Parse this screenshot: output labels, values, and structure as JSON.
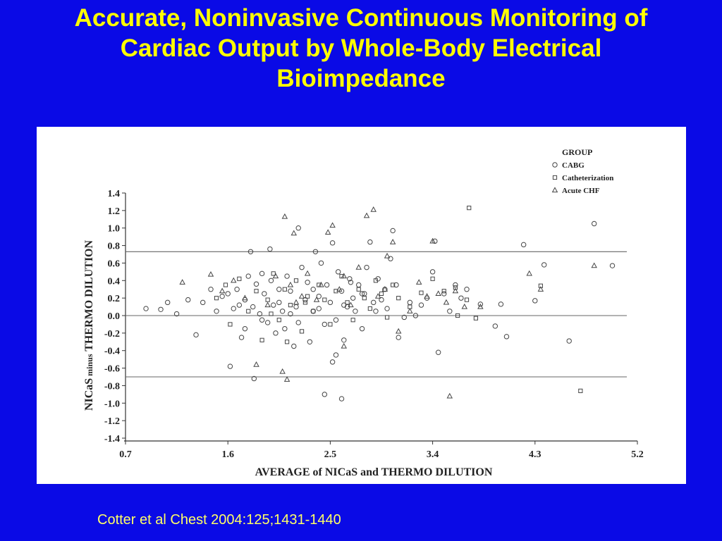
{
  "slide": {
    "title": "Accurate, Noninvasive Continuous Monitoring of Cardiac Output by Whole-Body Electrical Bioimpedance",
    "citation": "Cotter et al Chest 2004:125;1431-1440",
    "background_color": "#0a0ae6",
    "title_color": "#ffff00",
    "citation_color": "#ffff66"
  },
  "chart_data": {
    "type": "scatter",
    "xlabel": "AVERAGE of NICaS and THERMO DILUTION",
    "ylabel_parts": [
      "NICaS",
      "minus",
      "THERMO DILUTION"
    ],
    "xlim": [
      0.7,
      5.2
    ],
    "ylim": [
      -1.4,
      1.4
    ],
    "x_ticks": [
      "0.7",
      "1.6",
      "2.5",
      "3.4",
      "4.3",
      "5.2"
    ],
    "y_ticks": [
      "1.4",
      "1.2",
      "1.0",
      "0.8",
      "0.6",
      "0.4",
      "0.2",
      "0.0",
      "-0.2",
      "-0.4",
      "-0.6",
      "-0.8",
      "-1.0",
      "-1.2",
      "-1.4"
    ],
    "reference_lines": [
      0.73,
      0.0,
      -0.7
    ],
    "legend": {
      "title": "GROUP",
      "position": "top-right",
      "entries": [
        {
          "name": "CABG",
          "marker": "circle"
        },
        {
          "name": "Catheterization",
          "marker": "square"
        },
        {
          "name": "Acute CHF",
          "marker": "triangle"
        }
      ]
    },
    "series": [
      {
        "name": "CABG",
        "marker": "circle",
        "points": [
          [
            0.88,
            0.08
          ],
          [
            1.01,
            0.07
          ],
          [
            1.07,
            0.15
          ],
          [
            1.15,
            0.02
          ],
          [
            1.25,
            0.18
          ],
          [
            1.32,
            -0.22
          ],
          [
            1.38,
            0.15
          ],
          [
            1.45,
            0.3
          ],
          [
            1.5,
            0.05
          ],
          [
            1.55,
            0.22
          ],
          [
            1.6,
            0.25
          ],
          [
            1.62,
            -0.58
          ],
          [
            1.65,
            0.08
          ],
          [
            1.68,
            0.3
          ],
          [
            1.7,
            0.12
          ],
          [
            1.72,
            -0.25
          ],
          [
            1.75,
            0.18
          ],
          [
            1.78,
            0.45
          ],
          [
            1.8,
            0.73
          ],
          [
            1.82,
            0.1
          ],
          [
            1.83,
            -0.72
          ],
          [
            1.85,
            0.36
          ],
          [
            1.88,
            0.02
          ],
          [
            1.9,
            0.48
          ],
          [
            1.92,
            0.25
          ],
          [
            1.95,
            -0.08
          ],
          [
            1.97,
            0.76
          ],
          [
            1.98,
            0.4
          ],
          [
            2.0,
            0.12
          ],
          [
            2.02,
            -0.2
          ],
          [
            2.05,
            0.3
          ],
          [
            2.08,
            0.05
          ],
          [
            2.1,
            -0.15
          ],
          [
            2.12,
            0.45
          ],
          [
            2.15,
            0.28
          ],
          [
            2.18,
            -0.35
          ],
          [
            2.2,
            0.1
          ],
          [
            2.22,
            1.0
          ],
          [
            2.25,
            0.55
          ],
          [
            2.28,
            0.18
          ],
          [
            2.3,
            0.38
          ],
          [
            2.32,
            -0.3
          ],
          [
            2.35,
            0.05
          ],
          [
            2.37,
            0.73
          ],
          [
            2.4,
            0.22
          ],
          [
            2.42,
            0.6
          ],
          [
            2.45,
            -0.1
          ],
          [
            2.47,
            0.35
          ],
          [
            2.5,
            0.15
          ],
          [
            2.52,
            0.83
          ],
          [
            2.55,
            -0.05
          ],
          [
            2.57,
            0.5
          ],
          [
            2.6,
            0.28
          ],
          [
            2.62,
            -0.28
          ],
          [
            2.65,
            0.1
          ],
          [
            2.67,
            0.42
          ],
          [
            2.7,
            0.2
          ],
          [
            2.72,
            0.05
          ],
          [
            2.75,
            0.35
          ],
          [
            2.78,
            -0.15
          ],
          [
            2.8,
            0.25
          ],
          [
            2.82,
            0.55
          ],
          [
            2.85,
            0.84
          ],
          [
            2.88,
            0.15
          ],
          [
            2.9,
            0.05
          ],
          [
            2.92,
            0.42
          ],
          [
            2.95,
            0.18
          ],
          [
            2.98,
            0.3
          ],
          [
            3.0,
            0.08
          ],
          [
            3.03,
            0.65
          ],
          [
            3.05,
            0.97
          ],
          [
            3.08,
            0.35
          ],
          [
            3.1,
            -0.25
          ],
          [
            3.15,
            -0.02
          ],
          [
            3.2,
            0.15
          ],
          [
            3.25,
            0.0
          ],
          [
            3.3,
            0.12
          ],
          [
            3.35,
            0.2
          ],
          [
            3.4,
            0.5
          ],
          [
            3.42,
            0.85
          ],
          [
            3.45,
            -0.42
          ],
          [
            3.5,
            0.25
          ],
          [
            3.55,
            0.05
          ],
          [
            3.6,
            0.35
          ],
          [
            3.65,
            0.2
          ],
          [
            3.7,
            0.3
          ],
          [
            3.82,
            0.13
          ],
          [
            3.95,
            -0.12
          ],
          [
            4.0,
            0.13
          ],
          [
            4.05,
            -0.24
          ],
          [
            4.2,
            0.81
          ],
          [
            4.3,
            0.17
          ],
          [
            4.38,
            0.58
          ],
          [
            4.6,
            -0.29
          ],
          [
            4.82,
            1.05
          ],
          [
            4.98,
            0.57
          ],
          [
            2.45,
            -0.9
          ],
          [
            2.6,
            -0.95
          ],
          [
            2.52,
            -0.53
          ],
          [
            2.55,
            -0.45
          ],
          [
            1.9,
            -0.05
          ],
          [
            2.15,
            0.02
          ],
          [
            2.35,
            0.3
          ],
          [
            2.4,
            0.08
          ],
          [
            2.62,
            0.12
          ],
          [
            2.78,
            0.25
          ],
          [
            2.22,
            -0.08
          ],
          [
            1.75,
            -0.15
          ],
          [
            2.05,
            0.15
          ],
          [
            2.68,
            0.38
          ]
        ]
      },
      {
        "name": "Catheterization",
        "marker": "square",
        "points": [
          [
            1.5,
            0.2
          ],
          [
            1.58,
            0.35
          ],
          [
            1.62,
            -0.1
          ],
          [
            1.7,
            0.42
          ],
          [
            1.78,
            0.05
          ],
          [
            1.85,
            0.28
          ],
          [
            1.9,
            -0.28
          ],
          [
            1.95,
            0.18
          ],
          [
            2.0,
            0.48
          ],
          [
            2.05,
            -0.05
          ],
          [
            2.1,
            0.3
          ],
          [
            2.15,
            0.12
          ],
          [
            2.2,
            0.4
          ],
          [
            2.25,
            -0.18
          ],
          [
            2.3,
            0.22
          ],
          [
            2.35,
            0.05
          ],
          [
            2.4,
            0.35
          ],
          [
            2.45,
            0.18
          ],
          [
            2.5,
            -0.1
          ],
          [
            2.55,
            0.28
          ],
          [
            2.6,
            0.45
          ],
          [
            2.65,
            0.15
          ],
          [
            2.7,
            -0.05
          ],
          [
            2.75,
            0.3
          ],
          [
            2.8,
            0.2
          ],
          [
            2.85,
            0.08
          ],
          [
            2.9,
            0.4
          ],
          [
            2.95,
            0.25
          ],
          [
            3.0,
            -0.02
          ],
          [
            3.05,
            0.35
          ],
          [
            3.1,
            0.2
          ],
          [
            3.2,
            0.1
          ],
          [
            3.3,
            0.26
          ],
          [
            3.4,
            0.42
          ],
          [
            3.5,
            0.28
          ],
          [
            3.6,
            0.32
          ],
          [
            3.7,
            0.18
          ],
          [
            3.72,
            1.23
          ],
          [
            3.78,
            -0.03
          ],
          [
            4.35,
            0.34
          ],
          [
            4.7,
            -0.86
          ],
          [
            3.62,
            0.0
          ],
          [
            2.12,
            -0.3
          ],
          [
            1.98,
            0.02
          ],
          [
            2.28,
            0.15
          ]
        ]
      },
      {
        "name": "Acute CHF",
        "marker": "triangle",
        "points": [
          [
            1.2,
            0.38
          ],
          [
            1.45,
            0.47
          ],
          [
            1.55,
            0.28
          ],
          [
            1.65,
            0.4
          ],
          [
            1.75,
            0.2
          ],
          [
            1.85,
            -0.56
          ],
          [
            1.95,
            0.12
          ],
          [
            2.02,
            0.45
          ],
          [
            2.08,
            -0.64
          ],
          [
            2.1,
            1.13
          ],
          [
            2.15,
            0.35
          ],
          [
            2.18,
            0.94
          ],
          [
            2.25,
            0.22
          ],
          [
            2.3,
            0.48
          ],
          [
            2.38,
            0.18
          ],
          [
            2.42,
            0.35
          ],
          [
            2.48,
            0.95
          ],
          [
            2.52,
            1.03
          ],
          [
            2.58,
            0.3
          ],
          [
            2.62,
            0.45
          ],
          [
            2.68,
            0.12
          ],
          [
            2.75,
            0.55
          ],
          [
            2.82,
            1.14
          ],
          [
            2.88,
            1.21
          ],
          [
            2.92,
            0.22
          ],
          [
            2.98,
            0.3
          ],
          [
            3.0,
            0.68
          ],
          [
            3.05,
            0.84
          ],
          [
            3.1,
            -0.18
          ],
          [
            3.2,
            0.05
          ],
          [
            3.28,
            0.38
          ],
          [
            3.35,
            0.22
          ],
          [
            3.4,
            0.85
          ],
          [
            3.45,
            0.25
          ],
          [
            3.52,
            0.15
          ],
          [
            3.55,
            -0.92
          ],
          [
            3.6,
            0.28
          ],
          [
            3.68,
            0.1
          ],
          [
            3.82,
            0.1
          ],
          [
            4.25,
            0.48
          ],
          [
            4.35,
            0.3
          ],
          [
            4.82,
            0.57
          ],
          [
            2.12,
            -0.73
          ],
          [
            2.2,
            0.15
          ],
          [
            2.62,
            -0.35
          ]
        ]
      }
    ]
  }
}
